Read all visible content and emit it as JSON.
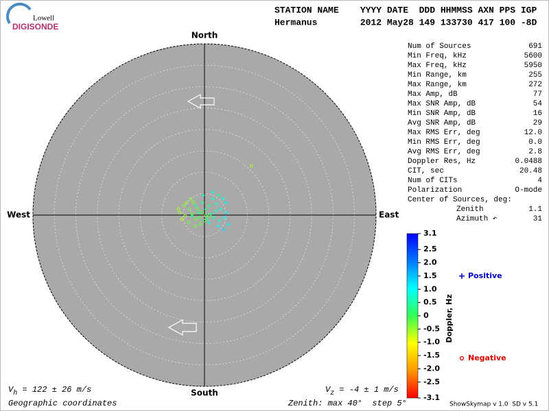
{
  "logo": {
    "top": "Lowell",
    "bottom": "DIGISONDE"
  },
  "header": {
    "labels": "STATION NAME    YYYY DATE  DDD HHMMSS AXN PPS IGP",
    "values": "Hermanus        2012 May28 149 133730 417 100 -8D"
  },
  "stats": {
    "rows": [
      [
        "Num of Sources",
        "691"
      ],
      [
        "Min Freq, kHz",
        "5600"
      ],
      [
        "Max Freq, kHz",
        "5950"
      ],
      [
        "Min Range, km",
        "255"
      ],
      [
        "Max Range, km",
        "272"
      ],
      [
        "Max Amp, dB",
        "77"
      ],
      [
        "Max SNR Amp, dB",
        "54"
      ],
      [
        "Min SNR Amp, dB",
        "16"
      ],
      [
        "Avg SNR Amp, dB",
        "29"
      ],
      [
        "Max RMS Err, deg",
        "12.0"
      ],
      [
        "Min RMS Err, deg",
        "0.0"
      ],
      [
        "Avg RMS Err, deg",
        "2.8"
      ],
      [
        "Doppler Res, Hz",
        "0.0488"
      ],
      [
        "CIT, sec",
        "20.48"
      ],
      [
        "Num of CITs",
        "4"
      ],
      [
        "Polarization",
        "O-mode"
      ]
    ],
    "center": {
      "title": "Center of Sources, deg:",
      "rows": [
        [
          "Zenith",
          "1.1"
        ],
        [
          "Azimuth ↶",
          "31"
        ]
      ]
    }
  },
  "chart_data": {
    "type": "skymap",
    "directions": {
      "north": "North",
      "south": "South",
      "west": "West",
      "east": "East"
    },
    "rlim": [
      0,
      40
    ],
    "rticks": [
      5,
      10,
      15,
      20,
      25,
      30,
      35,
      40
    ],
    "colorbar": {
      "label": "Doppler, Hz",
      "lim": [
        -3.1,
        3.1
      ],
      "colormap": [
        "#ff0000",
        "#ff9900",
        "#ffff00",
        "#33ff55",
        "#00ffff",
        "#0077ff",
        "#0000ff"
      ],
      "ticks": [
        3.1,
        2.5,
        {
          "value": 2,
          "label": "2.0"
        },
        1.5,
        {
          "value": 1,
          "label": "1.0"
        },
        0.5,
        0,
        -0.5,
        {
          "value": -1,
          "label": "-1.0"
        },
        -1.5,
        {
          "value": -2,
          "label": "-2.0"
        },
        -2.5,
        -3.1
      ]
    },
    "series": [
      {
        "name": "Positive",
        "marker": "+",
        "color": "#0000cc",
        "x": [
          1.9,
          3.2,
          4.3,
          5.0,
          1.1,
          2.7,
          3.8,
          5.1,
          4.6,
          3.5,
          2.2,
          0.3,
          -0.5,
          -1.3,
          1.6,
          0.6,
          3.2,
          4.5,
          5.6,
          -2.1,
          1.9,
          -0.3,
          2.7,
          1.1,
          -2.9
        ],
        "y": [
          5.4,
          4.6,
          3.8,
          2.9,
          2.2,
          2.6,
          1.4,
          0.6,
          -0.6,
          -1.3,
          -0.6,
          1.4,
          2.9,
          0.6,
          0.3,
          -1.0,
          -2.6,
          -3.4,
          -2.2,
          2.2,
          3.8,
          4.6,
          1.0,
          -1.8,
          -0.2
        ],
        "doppler": [
          0.9,
          0.6,
          0.8,
          1.1,
          0.4,
          0.7,
          0.9,
          1.2,
          1.0,
          0.8,
          0.5,
          0.3,
          0.4,
          0.3,
          0.6,
          0.5,
          1.0,
          1.3,
          1.1,
          0.4,
          0.7,
          0.5,
          0.6,
          0.8,
          0.3
        ]
      },
      {
        "name": "Negative",
        "marker": "o",
        "color": "#dd0000",
        "x": [
          -5.8,
          -4.8,
          -4.2,
          -3.5,
          -2.9,
          -2.1,
          -4.5,
          -5.3,
          -1.3,
          -1.6,
          -2.6,
          -0.5,
          0.3,
          -3.7,
          -1.0,
          1.1,
          -6.1,
          -3.2,
          0,
          -2.1,
          10.9
        ],
        "y": [
          0.6,
          2.2,
          2.9,
          1.4,
          0.3,
          -1.0,
          -0.2,
          -1.0,
          -0.6,
          1.4,
          3.0,
          0.6,
          -0.2,
          -1.8,
          -2.1,
          -0.2,
          1.4,
          3.8,
          -1.3,
          -2.6,
          11.5
        ],
        "doppler": [
          -0.6,
          -0.4,
          -0.5,
          -0.3,
          -0.2,
          -0.3,
          -0.5,
          -0.7,
          -0.1,
          -0.2,
          -0.4,
          -0.1,
          -0.2,
          -0.3,
          -0.2,
          -0.1,
          -0.6,
          -0.4,
          -0.2,
          -0.3,
          -0.6
        ]
      }
    ]
  },
  "velocity": {
    "horizontal": {
      "symbol": "V",
      "sub": "h",
      "text": " = 122 ± 26 m/s"
    },
    "vertical": {
      "symbol": "V",
      "sub": "z",
      "text": " = -4 ± 1 m/s"
    }
  },
  "footer": {
    "coordinates": "Geographic coordinates",
    "zenith": "Zenith: max 40°  step 5°",
    "version": "ShowSkymap v 1.0  SD v 5.1"
  }
}
